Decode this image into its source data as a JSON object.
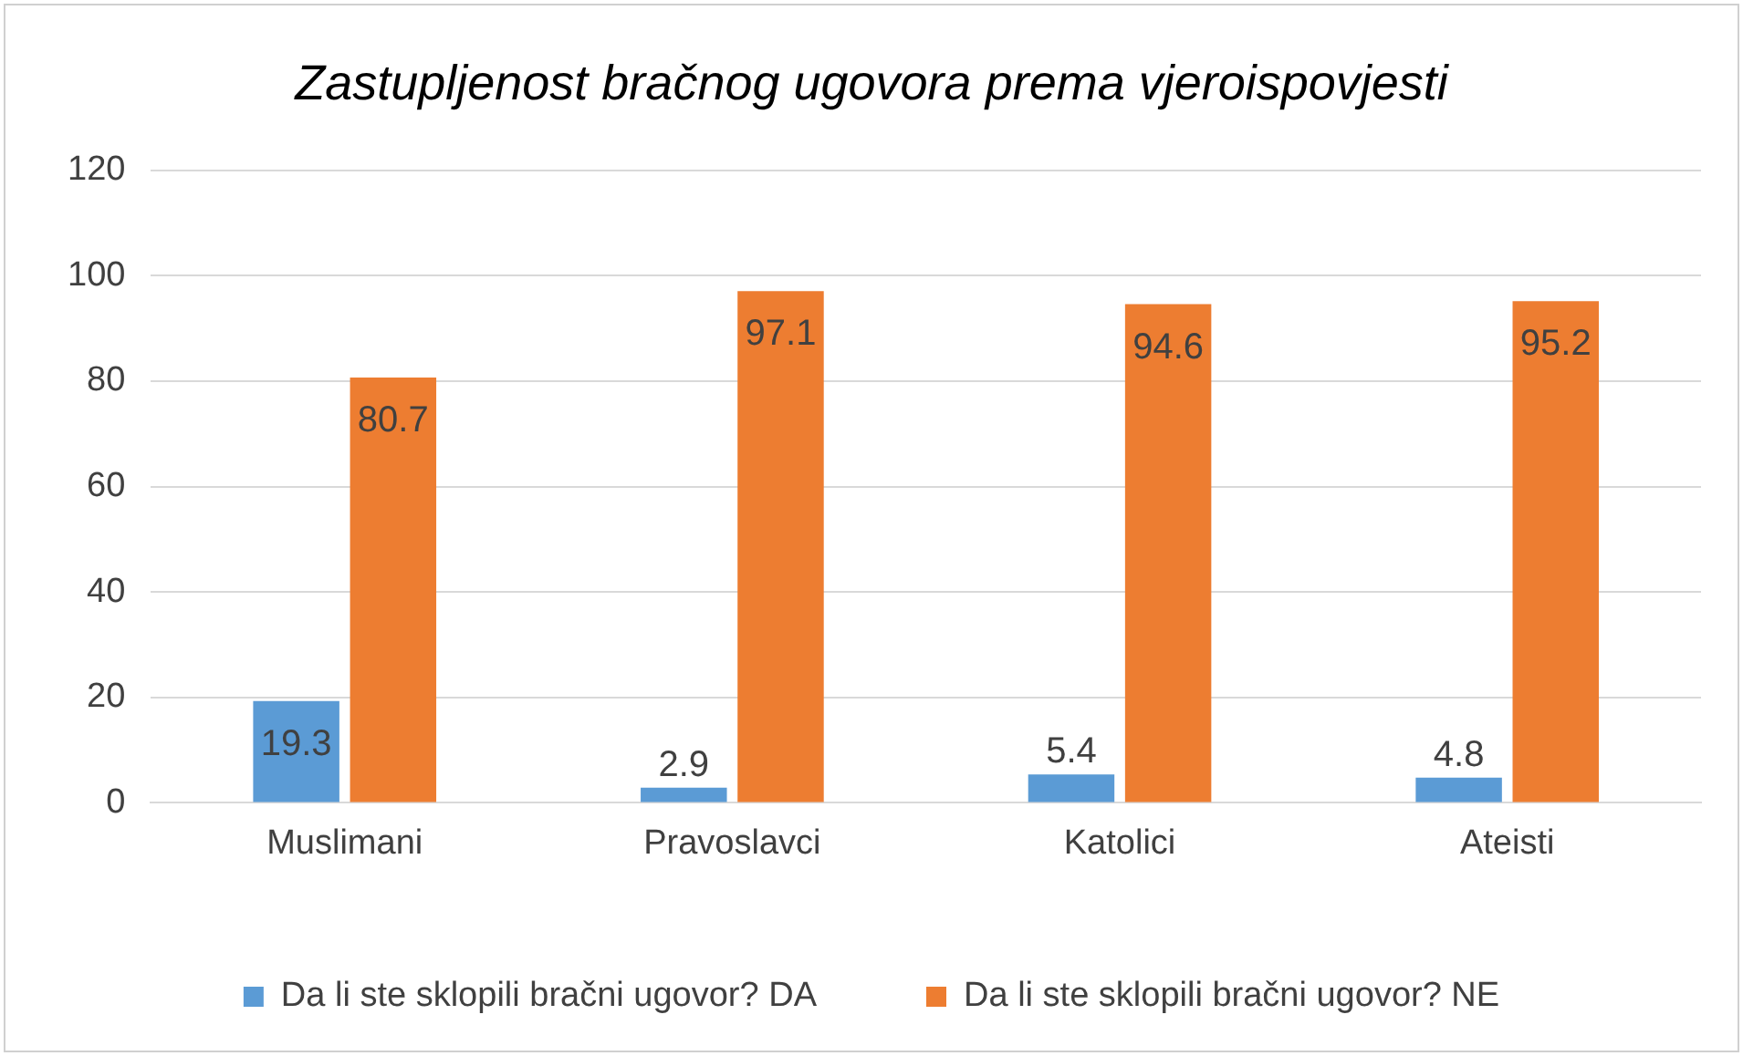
{
  "chart_data": {
    "type": "bar",
    "title": "Zastupljenost bračnog ugovora prema vjeroispovjesti",
    "categories": [
      "Muslimani",
      "Pravoslavci",
      "Katolici",
      "Ateisti"
    ],
    "series": [
      {
        "name": "Da li ste sklopili bračni ugovor? DA",
        "color": "#5b9bd5",
        "values": [
          19.3,
          2.9,
          5.4,
          4.8
        ]
      },
      {
        "name": "Da li ste sklopili bračni ugovor? NE",
        "color": "#ed7d31",
        "values": [
          80.7,
          97.1,
          94.6,
          95.2
        ]
      }
    ],
    "ylim": [
      0,
      120
    ],
    "yticks": [
      0,
      20,
      40,
      60,
      80,
      100,
      120
    ],
    "grid": "y",
    "legend": "bottom",
    "data_labels": true
  }
}
